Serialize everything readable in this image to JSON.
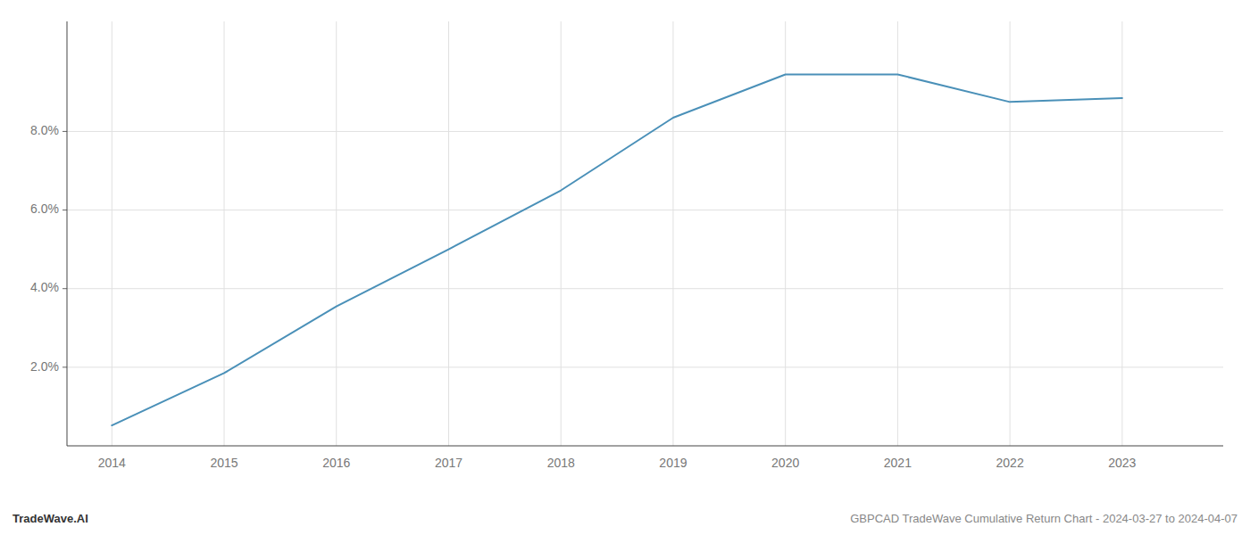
{
  "chart_data": {
    "type": "line",
    "x": [
      2014,
      2015,
      2016,
      2017,
      2018,
      2019,
      2020,
      2021,
      2022,
      2023
    ],
    "values": [
      0.52,
      1.85,
      3.55,
      5.0,
      6.5,
      8.35,
      9.45,
      9.45,
      8.75,
      8.85
    ],
    "color": "#4a90b8",
    "xlim": [
      2013.6,
      2023.9
    ],
    "xticks": [
      2014,
      2015,
      2016,
      2017,
      2018,
      2019,
      2020,
      2021,
      2022,
      2023
    ],
    "ylim": [
      0.0,
      10.8
    ],
    "yticks": [
      {
        "value": 2.0,
        "label": "2.0%"
      },
      {
        "value": 4.0,
        "label": "4.0%"
      },
      {
        "value": 6.0,
        "label": "6.0%"
      },
      {
        "value": 8.0,
        "label": "8.0%"
      }
    ],
    "grid": true,
    "annotations": [
      "TradeWave.AI",
      "GBPCAD TradeWave Cumulative Return Chart - 2024-03-27 to 2024-04-07"
    ]
  }
}
